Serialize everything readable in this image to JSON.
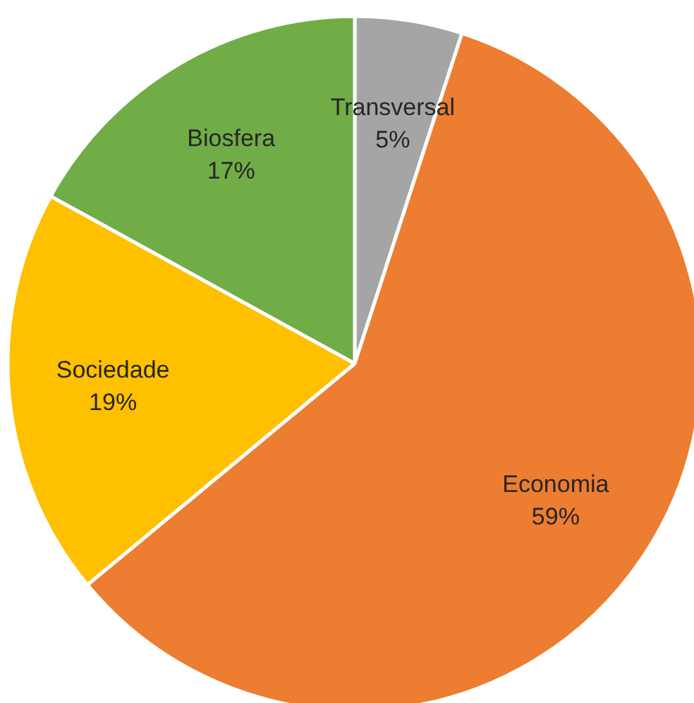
{
  "chart_data": {
    "type": "pie",
    "categories": [
      "Transversal",
      "Economia",
      "Sociedade",
      "Biosfera"
    ],
    "values": [
      5,
      59,
      19,
      17
    ],
    "value_labels": [
      "5%",
      "59%",
      "19%",
      "17%"
    ],
    "colors": [
      "#a5a5a5",
      "#ed7d31",
      "#ffc000",
      "#70ad47"
    ]
  }
}
